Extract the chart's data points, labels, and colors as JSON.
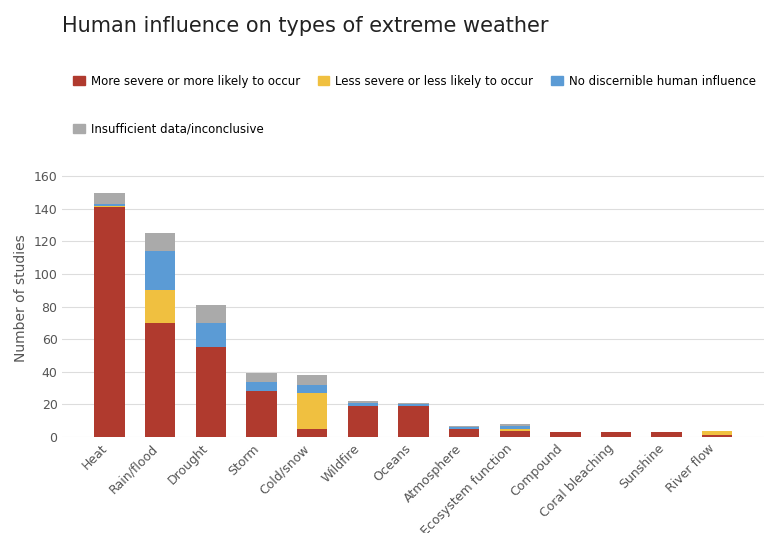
{
  "title": "Human influence on types of extreme weather",
  "ylabel": "Number of studies",
  "categories": [
    "Heat",
    "Rain/flood",
    "Drought",
    "Storm",
    "Cold/snow",
    "Wildfire",
    "Oceans",
    "Atmosphere",
    "Ecosystem function",
    "Compound",
    "Coral bleaching",
    "Sunshine",
    "River flow"
  ],
  "series": {
    "more_severe": [
      141,
      70,
      55,
      28,
      5,
      19,
      19,
      5,
      4,
      3,
      3,
      3,
      1
    ],
    "less_severe": [
      1,
      20,
      0,
      0,
      22,
      0,
      0,
      0,
      1,
      0,
      0,
      0,
      3
    ],
    "no_discernible": [
      1,
      24,
      15,
      6,
      5,
      2,
      1,
      1,
      2,
      0,
      0,
      0,
      0
    ],
    "insufficient": [
      7,
      11,
      11,
      5,
      6,
      1,
      1,
      1,
      1,
      0,
      0,
      0,
      0
    ]
  },
  "colors": {
    "more_severe": "#b03a2e",
    "less_severe": "#f0c040",
    "no_discernible": "#5b9bd5",
    "insufficient": "#aaaaaa"
  },
  "legend_labels": {
    "more_severe": "More severe or more likely to occur",
    "less_severe": "Less severe or less likely to occur",
    "no_discernible": "No discernible human influence",
    "insufficient": "Insufficient data/inconclusive"
  },
  "ylim": [
    0,
    170
  ],
  "yticks": [
    0,
    20,
    40,
    60,
    80,
    100,
    120,
    140,
    160
  ],
  "background_color": "#ffffff",
  "grid_color": "#dddddd",
  "title_fontsize": 15,
  "label_fontsize": 10,
  "tick_fontsize": 9
}
